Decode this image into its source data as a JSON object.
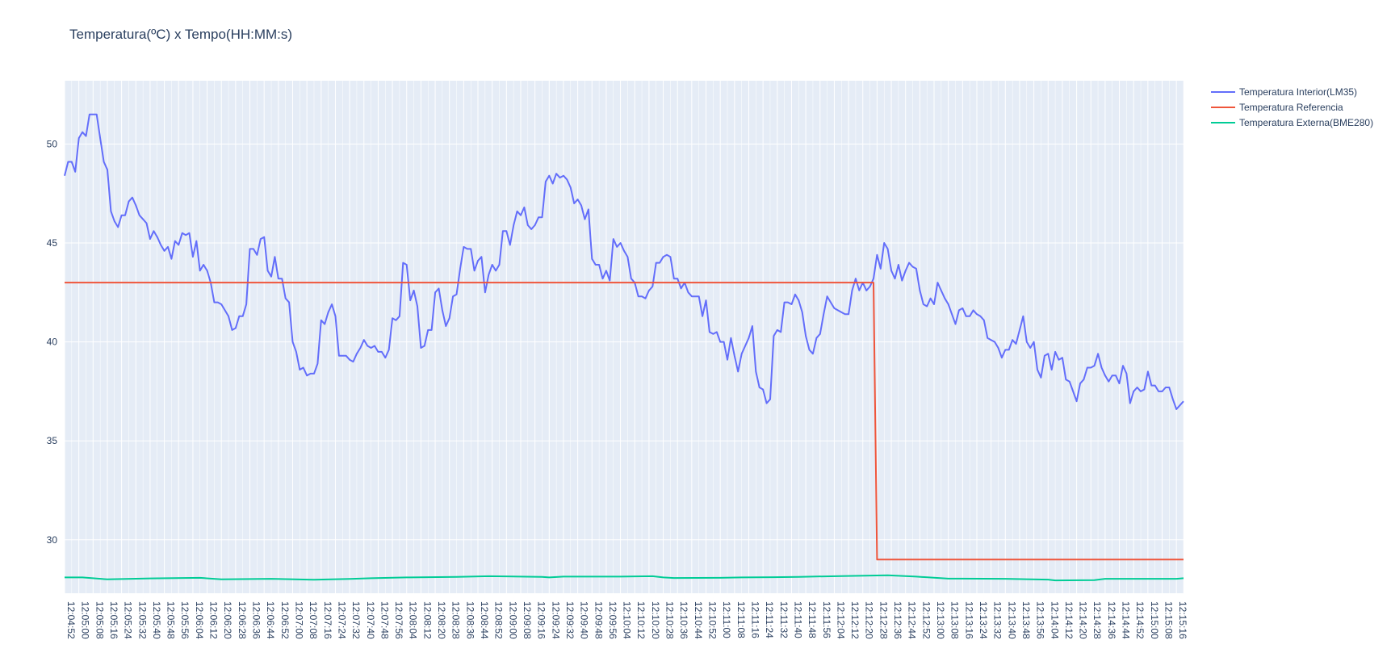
{
  "chart_data": {
    "type": "line",
    "title": "Temperatura(ºC) x Tempo(HH:MM:s)",
    "xlabel": "",
    "ylabel": "",
    "ylim": [
      27.3,
      53.2
    ],
    "y_ticks": [
      30,
      35,
      40,
      45,
      50
    ],
    "x_tick_labels": [
      "12:04:52",
      "12:05:00",
      "12:05:08",
      "12:05:16",
      "12:05:24",
      "12:05:32",
      "12:05:40",
      "12:05:48",
      "12:05:56",
      "12:06:04",
      "12:06:12",
      "12:06:20",
      "12:06:28",
      "12:06:36",
      "12:06:44",
      "12:06:52",
      "12:07:00",
      "12:07:08",
      "12:07:16",
      "12:07:24",
      "12:07:32",
      "12:07:40",
      "12:07:48",
      "12:07:56",
      "12:08:04",
      "12:08:12",
      "12:08:20",
      "12:08:28",
      "12:08:36",
      "12:08:44",
      "12:08:52",
      "12:09:00",
      "12:09:08",
      "12:09:16",
      "12:09:24",
      "12:09:32",
      "12:09:40",
      "12:09:48",
      "12:09:56",
      "12:10:04",
      "12:10:12",
      "12:10:20",
      "12:10:28",
      "12:10:36",
      "12:10:44",
      "12:10:52",
      "12:11:00",
      "12:11:08",
      "12:11:16",
      "12:11:24",
      "12:11:32",
      "12:11:40",
      "12:11:48",
      "12:11:56",
      "12:12:04",
      "12:12:12",
      "12:12:20",
      "12:12:28",
      "12:12:36",
      "12:12:44",
      "12:12:52",
      "12:13:00",
      "12:13:08",
      "12:13:16",
      "12:13:24",
      "12:13:32",
      "12:13:40",
      "12:13:48",
      "12:13:56",
      "12:14:04",
      "12:14:12",
      "12:14:20",
      "12:14:28",
      "12:14:36",
      "12:14:44",
      "12:14:52",
      "12:15:00",
      "12:15:08",
      "12:15:16"
    ],
    "x_range_seconds": [
      292,
      920
    ],
    "x_tick_step_seconds": 8,
    "grid": true,
    "legend_position": "top-right",
    "background_color": "#e5ecf6",
    "series": [
      {
        "name": "Temperatura Interior(LM35)",
        "color": "#636efa",
        "x": [
          "12:04:52",
          "12:04:54",
          "12:04:56",
          "12:04:58",
          "12:05:00",
          "12:05:02",
          "12:05:04",
          "12:05:06",
          "12:05:08",
          "12:05:10",
          "12:05:12",
          "12:05:14",
          "12:05:16",
          "12:05:18",
          "12:05:20",
          "12:05:22",
          "12:05:24",
          "12:05:26",
          "12:05:28",
          "12:05:30",
          "12:05:32",
          "12:05:34",
          "12:05:36",
          "12:05:38",
          "12:05:40",
          "12:05:42",
          "12:05:44",
          "12:05:46",
          "12:05:48",
          "12:05:50",
          "12:05:52",
          "12:05:54",
          "12:05:56",
          "12:05:58",
          "12:06:00",
          "12:06:02",
          "12:06:04",
          "12:06:06",
          "12:06:08",
          "12:06:10",
          "12:06:12",
          "12:06:14",
          "12:06:16",
          "12:06:18",
          "12:06:20",
          "12:06:22",
          "12:06:24",
          "12:06:26",
          "12:06:28",
          "12:06:30",
          "12:06:32",
          "12:06:34",
          "12:06:36",
          "12:06:38",
          "12:06:40",
          "12:06:42",
          "12:06:44",
          "12:06:46",
          "12:06:48",
          "12:06:50",
          "12:06:52",
          "12:06:54",
          "12:06:56",
          "12:06:58",
          "12:07:00",
          "12:07:02",
          "12:07:04",
          "12:07:06",
          "12:07:08",
          "12:07:10",
          "12:07:12",
          "12:07:14",
          "12:07:16",
          "12:07:18",
          "12:07:20",
          "12:07:22",
          "12:07:24",
          "12:07:26",
          "12:07:28",
          "12:07:30",
          "12:07:32",
          "12:07:34",
          "12:07:36",
          "12:07:38",
          "12:07:40",
          "12:07:42",
          "12:07:44",
          "12:07:46",
          "12:07:48",
          "12:07:50",
          "12:07:52",
          "12:07:54",
          "12:07:56",
          "12:07:58",
          "12:08:00",
          "12:08:02",
          "12:08:04",
          "12:08:06",
          "12:08:08",
          "12:08:10",
          "12:08:12",
          "12:08:14",
          "12:08:16",
          "12:08:18",
          "12:08:20",
          "12:08:22",
          "12:08:24",
          "12:08:26",
          "12:08:28",
          "12:08:30",
          "12:08:32",
          "12:08:34",
          "12:08:36",
          "12:08:38",
          "12:08:40",
          "12:08:42",
          "12:08:44",
          "12:08:46",
          "12:08:48",
          "12:08:50",
          "12:08:52",
          "12:08:54",
          "12:08:56",
          "12:08:58",
          "12:09:00",
          "12:09:02",
          "12:09:04",
          "12:09:06",
          "12:09:08",
          "12:09:10",
          "12:09:12",
          "12:09:14",
          "12:09:16",
          "12:09:18",
          "12:09:20",
          "12:09:22",
          "12:09:24",
          "12:09:26",
          "12:09:28",
          "12:09:30",
          "12:09:32",
          "12:09:34",
          "12:09:36",
          "12:09:38",
          "12:09:40",
          "12:09:42",
          "12:09:44",
          "12:09:46",
          "12:09:48",
          "12:09:50",
          "12:09:52",
          "12:09:54",
          "12:09:56",
          "12:09:58",
          "12:10:00",
          "12:10:02",
          "12:10:04",
          "12:10:06",
          "12:10:08",
          "12:10:10",
          "12:10:12",
          "12:10:14",
          "12:10:16",
          "12:10:18",
          "12:10:20",
          "12:10:22",
          "12:10:24",
          "12:10:26",
          "12:10:28",
          "12:10:30",
          "12:10:32",
          "12:10:34",
          "12:10:36",
          "12:10:38",
          "12:10:40",
          "12:10:42",
          "12:10:44",
          "12:10:46",
          "12:10:48",
          "12:10:50",
          "12:10:52",
          "12:10:54",
          "12:10:56",
          "12:10:58",
          "12:11:00",
          "12:11:02",
          "12:11:04",
          "12:11:06",
          "12:11:08",
          "12:11:10",
          "12:11:12",
          "12:11:14",
          "12:11:16",
          "12:11:18",
          "12:11:20",
          "12:11:22",
          "12:11:24",
          "12:11:26",
          "12:11:28",
          "12:11:30",
          "12:11:32",
          "12:11:34",
          "12:11:36",
          "12:11:38",
          "12:11:40",
          "12:11:42",
          "12:11:44",
          "12:11:46",
          "12:11:48",
          "12:11:50",
          "12:11:52",
          "12:11:54",
          "12:11:56",
          "12:11:58",
          "12:12:00",
          "12:12:02",
          "12:12:04",
          "12:12:06",
          "12:12:08",
          "12:12:10",
          "12:12:12",
          "12:12:14",
          "12:12:16",
          "12:12:18",
          "12:12:20",
          "12:12:22",
          "12:12:24",
          "12:12:26",
          "12:12:28",
          "12:12:30",
          "12:12:32",
          "12:12:34",
          "12:12:36",
          "12:12:38",
          "12:12:40",
          "12:12:42",
          "12:12:44",
          "12:12:46",
          "12:12:48",
          "12:12:50",
          "12:12:52",
          "12:12:54",
          "12:12:56",
          "12:12:58",
          "12:13:00",
          "12:13:02",
          "12:13:04",
          "12:13:06",
          "12:13:08",
          "12:13:10",
          "12:13:12",
          "12:13:14",
          "12:13:16",
          "12:13:18",
          "12:13:20",
          "12:13:22",
          "12:13:24",
          "12:13:26",
          "12:13:28",
          "12:13:30",
          "12:13:32",
          "12:13:34",
          "12:13:36",
          "12:13:38",
          "12:13:40",
          "12:13:42",
          "12:13:44",
          "12:13:46",
          "12:13:48",
          "12:13:50",
          "12:13:52",
          "12:13:54",
          "12:13:56",
          "12:13:58",
          "12:14:00",
          "12:14:02",
          "12:14:04",
          "12:14:06",
          "12:14:08",
          "12:14:10",
          "12:14:12",
          "12:14:14",
          "12:14:16",
          "12:14:18",
          "12:14:20",
          "12:14:22",
          "12:14:24",
          "12:14:26",
          "12:14:28",
          "12:14:30",
          "12:14:32",
          "12:14:34",
          "12:14:36",
          "12:14:38",
          "12:14:40",
          "12:14:42",
          "12:14:44",
          "12:14:46",
          "12:14:48",
          "12:14:50",
          "12:14:52",
          "12:14:54",
          "12:14:56",
          "12:14:58",
          "12:15:00",
          "12:15:02",
          "12:15:04",
          "12:15:06",
          "12:15:08",
          "12:15:10",
          "12:15:12",
          "12:15:14",
          "12:15:16",
          "12:15:18",
          "12:15:20"
        ],
        "y": [
          48.4,
          49.1,
          49.1,
          48.6,
          50.3,
          50.6,
          50.4,
          51.5,
          51.5,
          51.5,
          50.3,
          49.1,
          48.7,
          46.6,
          46.1,
          45.8,
          46.4,
          46.4,
          47.1,
          47.3,
          46.9,
          46.4,
          46.2,
          46,
          45.2,
          45.6,
          45.3,
          44.9,
          44.6,
          44.8,
          44.2,
          45.1,
          44.9,
          45.5,
          45.4,
          45.5,
          44.3,
          45.1,
          43.6,
          43.9,
          43.6,
          43,
          42,
          42,
          41.9,
          41.6,
          41.3,
          40.6,
          40.7,
          41.3,
          41.3,
          41.9,
          44.7,
          44.7,
          44.4,
          45.2,
          45.3,
          43.6,
          43.3,
          44.3,
          43.2,
          43.2,
          42.2,
          42,
          40,
          39.5,
          38.6,
          38.7,
          38.3,
          38.4,
          38.4,
          38.9,
          41.1,
          40.9,
          41.5,
          41.9,
          41.3,
          39.3,
          39.3,
          39.3,
          39.1,
          39,
          39.4,
          39.7,
          40.1,
          39.8,
          39.7,
          39.8,
          39.5,
          39.5,
          39.2,
          39.6,
          41.2,
          41.1,
          41.3,
          44,
          43.9,
          42.1,
          42.6,
          41.8,
          39.7,
          39.8,
          40.6,
          40.6,
          42.5,
          42.7,
          41.6,
          40.8,
          41.2,
          42.3,
          42.4,
          43.7,
          44.8,
          44.7,
          44.7,
          43.6,
          44.1,
          44.3,
          42.5,
          43.4,
          43.9,
          43.6,
          43.9,
          45.6,
          45.6,
          44.9,
          45.9,
          46.6,
          46.4,
          46.8,
          45.9,
          45.7,
          45.9,
          46.3,
          46.3,
          48.1,
          48.4,
          48,
          48.5,
          48.3,
          48.4,
          48.2,
          47.8,
          47,
          47.2,
          46.9,
          46.2,
          46.7,
          44.2,
          43.9,
          43.9,
          43.2,
          43.6,
          43.1,
          45.2,
          44.8,
          45,
          44.6,
          44.3,
          43.2,
          43,
          42.3,
          42.3,
          42.2,
          42.6,
          42.8,
          44,
          44,
          44.3,
          44.4,
          44.3,
          43.2,
          43.2,
          42.7,
          43,
          42.5,
          42.3,
          42.3,
          42.3,
          41.3,
          42.1,
          40.5,
          40.4,
          40.5,
          40,
          40,
          39.1,
          40.2,
          39.3,
          38.5,
          39.4,
          39.8,
          40.2,
          40.8,
          38.5,
          37.7,
          37.6,
          36.9,
          37.1,
          40.3,
          40.6,
          40.5,
          42,
          42,
          41.9,
          42.4,
          42.1,
          41.5,
          40.3,
          39.6,
          39.4,
          40.2,
          40.4,
          41.4,
          42.3,
          42,
          41.7,
          41.6,
          41.5,
          41.4,
          41.4,
          42.6,
          43.2,
          42.6,
          43,
          42.6,
          42.8,
          43.2,
          44.4,
          43.7,
          45,
          44.7,
          43.6,
          43.2,
          43.9,
          43.1,
          43.6,
          44,
          43.8,
          43.7,
          42.6,
          41.9,
          41.8,
          42.2,
          41.9,
          43,
          42.6,
          42.2,
          41.9,
          41.4,
          40.9,
          41.6,
          41.7,
          41.3,
          41.3,
          41.6,
          41.4,
          41.3,
          41.1,
          40.2,
          40.1,
          40,
          39.7,
          39.2,
          39.6,
          39.6,
          40.1,
          39.9,
          40.6,
          41.3,
          40,
          39.7,
          40,
          38.6,
          38.2,
          39.3,
          39.4,
          38.6,
          39.5,
          39.1,
          39.2,
          38.1,
          38,
          37.5,
          37,
          37.9,
          38.1,
          38.7,
          38.7,
          38.8,
          39.4,
          38.7,
          38.3,
          38,
          38.3,
          38.3,
          37.9,
          38.8,
          38.4,
          36.9,
          37.5,
          37.7,
          37.5,
          37.6,
          38.5,
          37.8,
          37.8,
          37.5,
          37.5,
          37.7,
          37.7,
          37.1,
          36.6,
          36.8,
          37
        ]
      },
      {
        "name": "Temperatura Referencia",
        "color": "#ef553b",
        "x": [
          "12:04:52",
          "12:12:26",
          "12:12:28",
          "12:15:20"
        ],
        "y": [
          43,
          43,
          29,
          29
        ]
      },
      {
        "name": "Temperatura Externa(BME280)",
        "color": "#00cc96",
        "x": [
          "12:04:52",
          "12:05:02",
          "12:05:16",
          "12:05:40",
          "12:06:08",
          "12:06:20",
          "12:06:48",
          "12:07:12",
          "12:07:32",
          "12:07:44",
          "12:08:04",
          "12:08:32",
          "12:08:50",
          "12:09:20",
          "12:09:24",
          "12:09:32",
          "12:10:04",
          "12:10:22",
          "12:10:28",
          "12:10:34",
          "12:11:00",
          "12:11:12",
          "12:11:30",
          "12:11:44",
          "12:12:08",
          "12:12:34",
          "12:12:50",
          "12:13:08",
          "12:13:16",
          "12:13:40",
          "12:14:04",
          "12:14:08",
          "12:14:30",
          "12:14:36",
          "12:15:16",
          "12:15:20"
        ],
        "y": [
          28.1,
          28.1,
          28,
          28.05,
          28.08,
          28,
          28.03,
          27.98,
          28.02,
          28.06,
          28.1,
          28.13,
          28.16,
          28.13,
          28.1,
          28.14,
          28.14,
          28.16,
          28.1,
          28.07,
          28.08,
          28.1,
          28.11,
          28.13,
          28.17,
          28.21,
          28.14,
          28.04,
          28.04,
          28.03,
          27.99,
          27.95,
          27.96,
          28.03,
          28.03,
          28.06
        ]
      }
    ]
  }
}
